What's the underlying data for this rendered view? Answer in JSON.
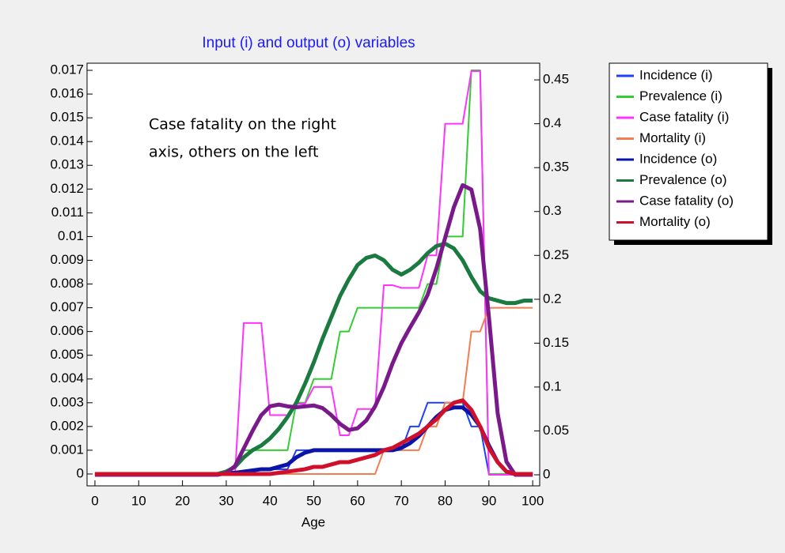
{
  "chart_data": {
    "type": "line",
    "title": "Input (i) and output (o) variables",
    "xlabel": "Age",
    "annotation": [
      "Case fatality on the right",
      "axis, others on the left"
    ],
    "x": [
      0,
      2,
      4,
      6,
      8,
      10,
      12,
      14,
      16,
      18,
      20,
      22,
      24,
      26,
      28,
      30,
      32,
      34,
      36,
      38,
      40,
      42,
      44,
      46,
      48,
      50,
      52,
      54,
      56,
      58,
      60,
      62,
      64,
      66,
      68,
      70,
      72,
      74,
      76,
      78,
      80,
      82,
      84,
      86,
      88,
      90,
      92,
      94,
      96,
      98,
      100
    ],
    "xlim": [
      -1.8,
      101.6
    ],
    "xticks": [
      0,
      10,
      20,
      30,
      40,
      50,
      60,
      70,
      80,
      90,
      100
    ],
    "ylim": [
      -0.0005,
      0.0173
    ],
    "yticks": [
      0,
      0.001,
      0.002,
      0.003,
      0.004,
      0.005,
      0.006,
      0.007,
      0.008,
      0.009,
      0.01,
      0.011,
      0.012,
      0.013,
      0.014,
      0.015,
      0.016,
      0.017
    ],
    "y2lim": [
      -0.0126,
      0.469
    ],
    "y2ticks": [
      0,
      0.05,
      0.1,
      0.15,
      0.2,
      0.25,
      0.3,
      0.35,
      0.4,
      0.45
    ],
    "legend": "outside-right",
    "series": [
      {
        "name": "Incidence (i)",
        "color": "#1f3fff",
        "line_style": "thin",
        "values": [
          0,
          0,
          0,
          0,
          0,
          0,
          0,
          0,
          0,
          0,
          0,
          0,
          0,
          0,
          0,
          0.0001,
          0.0001,
          0.0001,
          0.0002,
          0.0002,
          0.0002,
          0.0002,
          0.0002,
          0.001,
          0.001,
          0.001,
          0.001,
          0.001,
          0.001,
          0.001,
          0.001,
          0.001,
          0.001,
          0.001,
          0.001,
          0.001,
          0.002,
          0.002,
          0.003,
          0.003,
          0.003,
          0.003,
          0.003,
          0.002,
          0.002,
          0,
          0,
          0,
          0,
          0,
          0
        ]
      },
      {
        "name": "Prevalence (i)",
        "color": "#33cc33",
        "line_style": "thin",
        "values": [
          0,
          0,
          0,
          0,
          0,
          0,
          0,
          0,
          0,
          0,
          0,
          0,
          0,
          0,
          0,
          0,
          0.0003,
          0.001,
          0.001,
          0.001,
          0.001,
          0.001,
          0.001,
          0.003,
          0.003,
          0.004,
          0.004,
          0.004,
          0.006,
          0.006,
          0.007,
          0.007,
          0.007,
          0.007,
          0.007,
          0.007,
          0.007,
          0.007,
          0.008,
          0.008,
          0.01,
          0.01,
          0.01,
          0.017,
          0.017,
          0,
          0,
          0,
          0,
          0,
          0
        ]
      },
      {
        "name": "Case fatality (i)",
        "color": "#ff33ff",
        "line_style": "thin",
        "axis": "y2",
        "values": [
          0,
          0,
          0,
          0,
          0,
          0,
          0,
          0,
          0,
          0,
          0,
          0,
          0,
          0,
          0,
          0,
          0,
          0.173,
          0.173,
          0.173,
          0.068,
          0.068,
          0.068,
          0.081,
          0.081,
          0.1,
          0.1,
          0.1,
          0.045,
          0.045,
          0.075,
          0.075,
          0.075,
          0.216,
          0.216,
          0.213,
          0.213,
          0.213,
          0.25,
          0.25,
          0.4,
          0.4,
          0.4,
          0.46,
          0.46,
          0,
          0,
          0,
          0,
          0,
          0
        ]
      },
      {
        "name": "Mortality (i)",
        "color": "#f47c52",
        "line_style": "thin",
        "values": [
          0,
          0,
          0,
          0,
          0,
          0,
          0,
          0,
          0,
          0,
          0,
          0,
          0,
          0,
          0,
          0,
          0,
          0,
          0,
          0,
          0,
          0,
          0,
          0,
          0,
          0,
          0,
          0,
          0,
          0,
          0,
          0,
          0,
          0.001,
          0.001,
          0.001,
          0.001,
          0.001,
          0.002,
          0.002,
          0.003,
          0.003,
          0.003,
          0.006,
          0.006,
          0.007,
          0.007,
          0.007,
          0.007,
          0.007,
          0.007
        ]
      },
      {
        "name": "Incidence (o)",
        "color": "#0a14a8",
        "line_style": "thick",
        "values": [
          0,
          0,
          0,
          0,
          0,
          0,
          0,
          0,
          0,
          0,
          0,
          0,
          0,
          0,
          0,
          0,
          5e-05,
          0.0001,
          0.00015,
          0.0002,
          0.0002,
          0.0003,
          0.0004,
          0.0007,
          0.0009,
          0.001,
          0.001,
          0.001,
          0.001,
          0.001,
          0.001,
          0.001,
          0.001,
          0.001,
          0.001,
          0.0011,
          0.0013,
          0.0016,
          0.002,
          0.0024,
          0.0027,
          0.0028,
          0.0028,
          0.0025,
          0.002,
          0.0012,
          0.0005,
          0.0001,
          0,
          0,
          0
        ]
      },
      {
        "name": "Prevalence (o)",
        "color": "#1a7a40",
        "line_style": "thick",
        "values": [
          0,
          0,
          0,
          0,
          0,
          0,
          0,
          0,
          0,
          0,
          0,
          0,
          0,
          0,
          0,
          0.0001,
          0.0003,
          0.0007,
          0.001,
          0.0012,
          0.0015,
          0.0019,
          0.0024,
          0.003,
          0.0038,
          0.0047,
          0.0057,
          0.0066,
          0.0075,
          0.0082,
          0.0088,
          0.0091,
          0.0092,
          0.009,
          0.0086,
          0.0084,
          0.0086,
          0.0089,
          0.0093,
          0.0096,
          0.0097,
          0.0095,
          0.009,
          0.0083,
          0.0077,
          0.0074,
          0.0073,
          0.0072,
          0.0072,
          0.0073,
          0.0073
        ]
      },
      {
        "name": "Case fatality (o)",
        "color": "#7a1a8a",
        "line_style": "thick",
        "axis": "y2",
        "values": [
          0,
          0,
          0,
          0,
          0,
          0,
          0,
          0,
          0,
          0,
          0,
          0,
          0,
          0,
          0,
          0.002,
          0.01,
          0.03,
          0.05,
          0.068,
          0.078,
          0.08,
          0.078,
          0.077,
          0.078,
          0.079,
          0.076,
          0.068,
          0.058,
          0.051,
          0.053,
          0.062,
          0.078,
          0.1,
          0.127,
          0.15,
          0.168,
          0.185,
          0.205,
          0.235,
          0.27,
          0.305,
          0.33,
          0.325,
          0.28,
          0.18,
          0.07,
          0.015,
          0,
          0,
          0
        ]
      },
      {
        "name": "Mortality (o)",
        "color": "#d0102a",
        "line_style": "thick",
        "values": [
          0,
          0,
          0,
          0,
          0,
          0,
          0,
          0,
          0,
          0,
          0,
          0,
          0,
          0,
          0,
          0,
          0,
          0,
          0,
          0,
          0,
          5e-05,
          0.0001,
          0.00015,
          0.0002,
          0.0003,
          0.0003,
          0.0004,
          0.0005,
          0.0005,
          0.0006,
          0.0007,
          0.0008,
          0.001,
          0.0011,
          0.0013,
          0.0015,
          0.0017,
          0.002,
          0.0023,
          0.0027,
          0.003,
          0.0031,
          0.0027,
          0.002,
          0.0011,
          0.0005,
          0.0001,
          0,
          0,
          0
        ]
      }
    ]
  }
}
